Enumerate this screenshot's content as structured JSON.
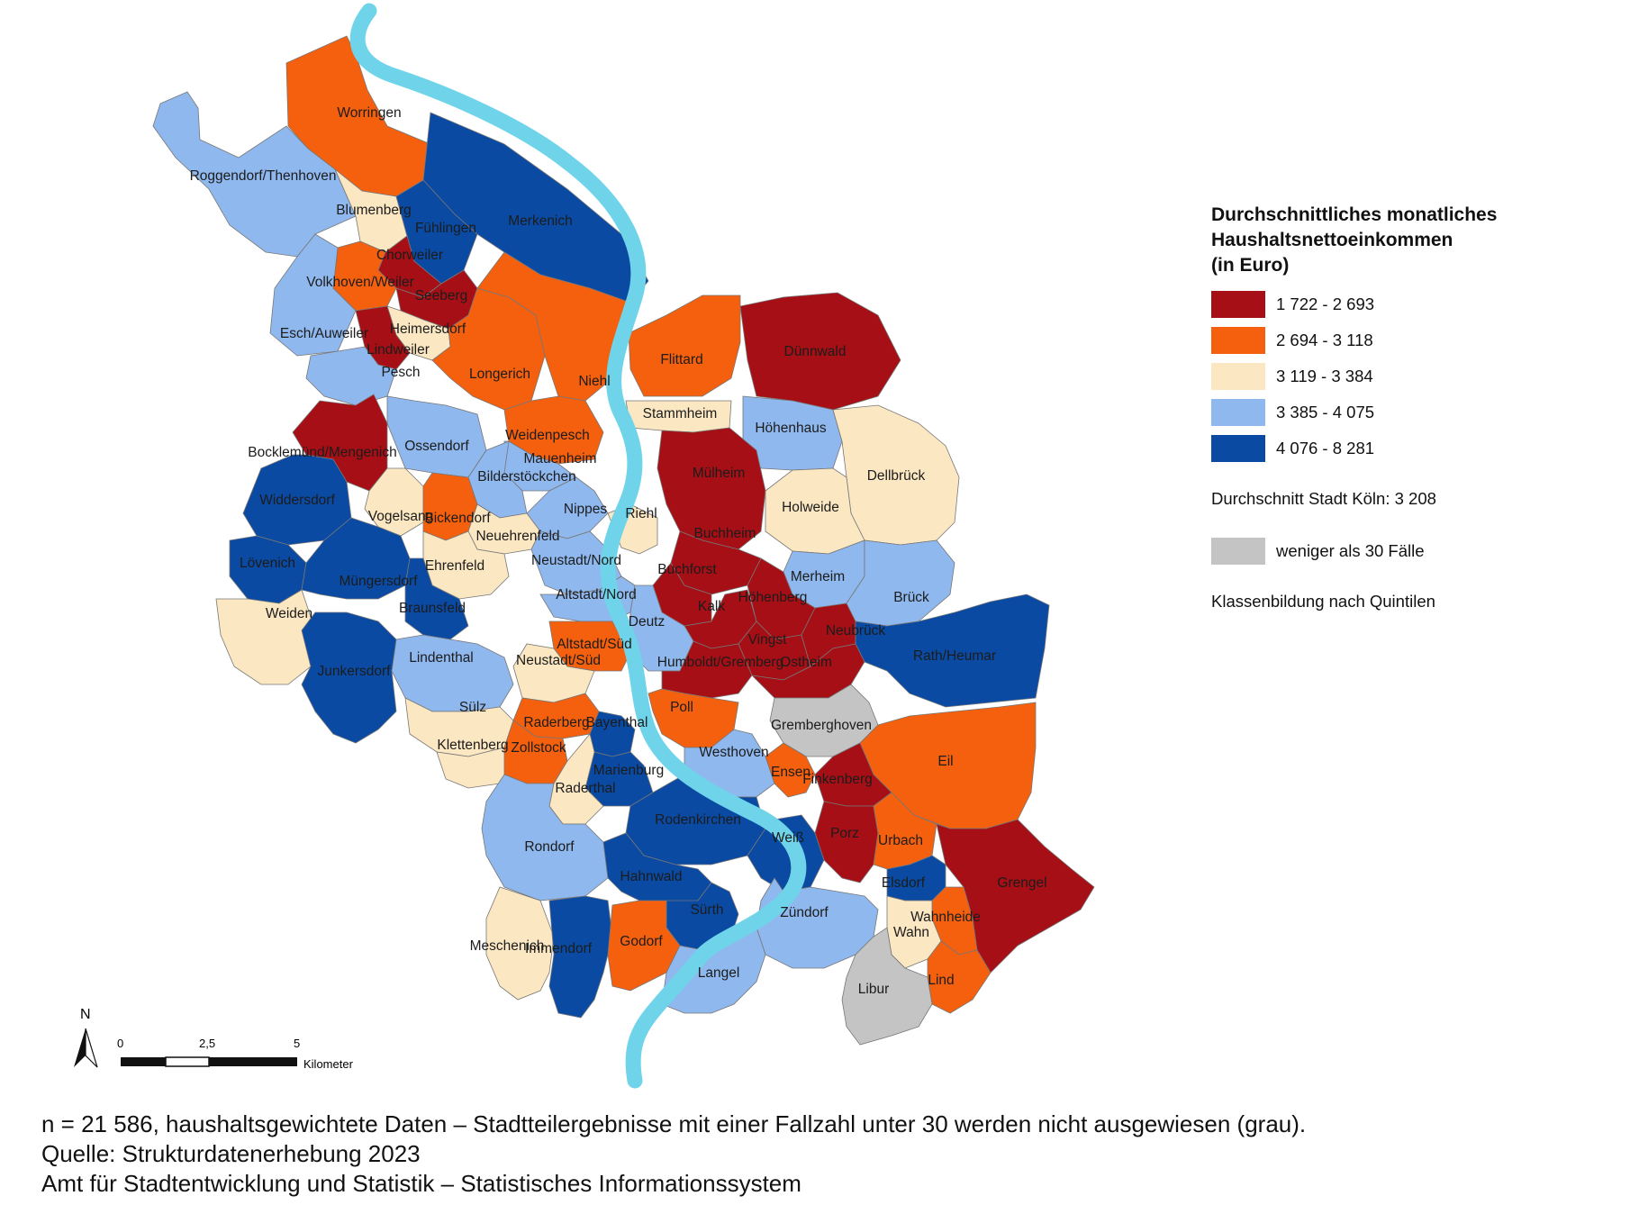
{
  "colors": {
    "class1": "#a50f15",
    "class2": "#f4600e",
    "class3": "#fbe7c2",
    "class4": "#8fb8ee",
    "class5": "#0a4aa2",
    "no_data": "#c4c4c4",
    "river": "#6fd4ea",
    "border": "#777777"
  },
  "legend": {
    "title_lines": [
      "Durchschnittliches monatliches",
      "Haushaltsnettoeinkommen",
      "(in Euro)"
    ],
    "classes": [
      {
        "label": "1 722 - 2 693",
        "color_key": "class1"
      },
      {
        "label": "2 694 - 3 118",
        "color_key": "class2"
      },
      {
        "label": "3 119 - 3 384",
        "color_key": "class3"
      },
      {
        "label": "3 385 - 4 075",
        "color_key": "class4"
      },
      {
        "label": "4 076 - 8 281",
        "color_key": "class5"
      }
    ],
    "average": "Durchschnitt Stadt Köln: 3 208",
    "no_data_label": "weniger als 30 Fälle",
    "classification": "Klassenbildung nach Quintilen"
  },
  "scale_bar": {
    "ticks": [
      "0",
      "2,5",
      "5"
    ],
    "unit": "Kilometer",
    "north": "N"
  },
  "footer": [
    "n = 21 586, haushaltsgewichtete Daten – Stadtteilergebnisse mit einer Fallzahl unter 30 werden nicht ausgewiesen (grau).",
    "Quelle: Strukturdatenerhebung 2023",
    "Amt für Stadtentwicklung und Statistik – Statistisches Informationssystem"
  ],
  "districts": [
    {
      "name": "Worringen",
      "cls": "class2"
    },
    {
      "name": "Roggendorf/Thenhoven",
      "cls": "class4"
    },
    {
      "name": "Blumenberg",
      "cls": "class3"
    },
    {
      "name": "Merkenich",
      "cls": "class5"
    },
    {
      "name": "Fühlingen",
      "cls": "class5"
    },
    {
      "name": "Chorweiler",
      "cls": "class1"
    },
    {
      "name": "Volkhoven/Weiler",
      "cls": "class2"
    },
    {
      "name": "Seeberg",
      "cls": "class1"
    },
    {
      "name": "Esch/Auweiler",
      "cls": "class4"
    },
    {
      "name": "Heimersdorf",
      "cls": "class3"
    },
    {
      "name": "Lindweiler",
      "cls": "class1"
    },
    {
      "name": "Pesch",
      "cls": "class4"
    },
    {
      "name": "Longerich",
      "cls": "class2"
    },
    {
      "name": "Niehl",
      "cls": "class2"
    },
    {
      "name": "Flittard",
      "cls": "class2"
    },
    {
      "name": "Dünnwald",
      "cls": "class1"
    },
    {
      "name": "Stammheim",
      "cls": "class3"
    },
    {
      "name": "Höhenhaus",
      "cls": "class4"
    },
    {
      "name": "Weidenpesch",
      "cls": "class2"
    },
    {
      "name": "Mauenheim",
      "cls": "class4"
    },
    {
      "name": "Bocklemünd/Mengenich",
      "cls": "class1"
    },
    {
      "name": "Ossendorf",
      "cls": "class4"
    },
    {
      "name": "Bilderstöckchen",
      "cls": "class4"
    },
    {
      "name": "Mülheim",
      "cls": "class1"
    },
    {
      "name": "Dellbrück",
      "cls": "class3"
    },
    {
      "name": "Holweide",
      "cls": "class3"
    },
    {
      "name": "Widdersdorf",
      "cls": "class5"
    },
    {
      "name": "Vogelsang",
      "cls": "class3"
    },
    {
      "name": "Bickendorf",
      "cls": "class2"
    },
    {
      "name": "Nippes",
      "cls": "class4"
    },
    {
      "name": "Riehl",
      "cls": "class3"
    },
    {
      "name": "Neuehrenfeld",
      "cls": "class3"
    },
    {
      "name": "Buchheim",
      "cls": "class1"
    },
    {
      "name": "Lövenich",
      "cls": "class5"
    },
    {
      "name": "Ehrenfeld",
      "cls": "class3"
    },
    {
      "name": "Neustadt/Nord",
      "cls": "class4"
    },
    {
      "name": "Buchforst",
      "cls": "class1"
    },
    {
      "name": "Merheim",
      "cls": "class4"
    },
    {
      "name": "Müngersdorf",
      "cls": "class5"
    },
    {
      "name": "Altstadt/Nord",
      "cls": "class4"
    },
    {
      "name": "Kalk",
      "cls": "class1"
    },
    {
      "name": "Höhenberg",
      "cls": "class1"
    },
    {
      "name": "Brück",
      "cls": "class4"
    },
    {
      "name": "Weiden",
      "cls": "class3"
    },
    {
      "name": "Braunsfeld",
      "cls": "class5"
    },
    {
      "name": "Deutz",
      "cls": "class4"
    },
    {
      "name": "Vingst",
      "cls": "class1"
    },
    {
      "name": "Neubrück",
      "cls": "class1"
    },
    {
      "name": "Rath/Heumar",
      "cls": "class5"
    },
    {
      "name": "Lindenthal",
      "cls": "class4"
    },
    {
      "name": "Altstadt/Süd",
      "cls": "class2"
    },
    {
      "name": "Neustadt/Süd",
      "cls": "class3"
    },
    {
      "name": "Humboldt/Gremberg",
      "cls": "class1"
    },
    {
      "name": "Ostheim",
      "cls": "class1"
    },
    {
      "name": "Junkersdorf",
      "cls": "class5"
    },
    {
      "name": "Sülz",
      "cls": "class3"
    },
    {
      "name": "Poll",
      "cls": "class2"
    },
    {
      "name": "Gremberghoven",
      "cls": "no_data"
    },
    {
      "name": "Raderberg",
      "cls": "class2"
    },
    {
      "name": "Bayenthal",
      "cls": "class5"
    },
    {
      "name": "Klettenberg",
      "cls": "class3"
    },
    {
      "name": "Zollstock",
      "cls": "class2"
    },
    {
      "name": "Westhoven",
      "cls": "class4"
    },
    {
      "name": "Eil",
      "cls": "class2"
    },
    {
      "name": "Ensen",
      "cls": "class2"
    },
    {
      "name": "Finkenberg",
      "cls": "class1"
    },
    {
      "name": "Marienburg",
      "cls": "class5"
    },
    {
      "name": "Raderthal",
      "cls": "class3"
    },
    {
      "name": "Rodenkirchen",
      "cls": "class5"
    },
    {
      "name": "Rondorf",
      "cls": "class4"
    },
    {
      "name": "Porz",
      "cls": "class1"
    },
    {
      "name": "Urbach",
      "cls": "class2"
    },
    {
      "name": "Westhoven_Weiß",
      "cls": "class5",
      "label": "Weiß"
    },
    {
      "name": "Grengel",
      "cls": "class1"
    },
    {
      "name": "Hahnwald",
      "cls": "class5"
    },
    {
      "name": "Elsdorf",
      "cls": "class5"
    },
    {
      "name": "Wahnheide",
      "cls": "class2"
    },
    {
      "name": "Sürth",
      "cls": "class5"
    },
    {
      "name": "Zündorf",
      "cls": "class4"
    },
    {
      "name": "Wahn",
      "cls": "class3"
    },
    {
      "name": "Meschenich",
      "cls": "class3"
    },
    {
      "name": "Immendorf",
      "cls": "class5"
    },
    {
      "name": "Godorf",
      "cls": "class2"
    },
    {
      "name": "Langel",
      "cls": "class4"
    },
    {
      "name": "Lind",
      "cls": "class2"
    },
    {
      "name": "Libur",
      "cls": "no_data"
    }
  ]
}
